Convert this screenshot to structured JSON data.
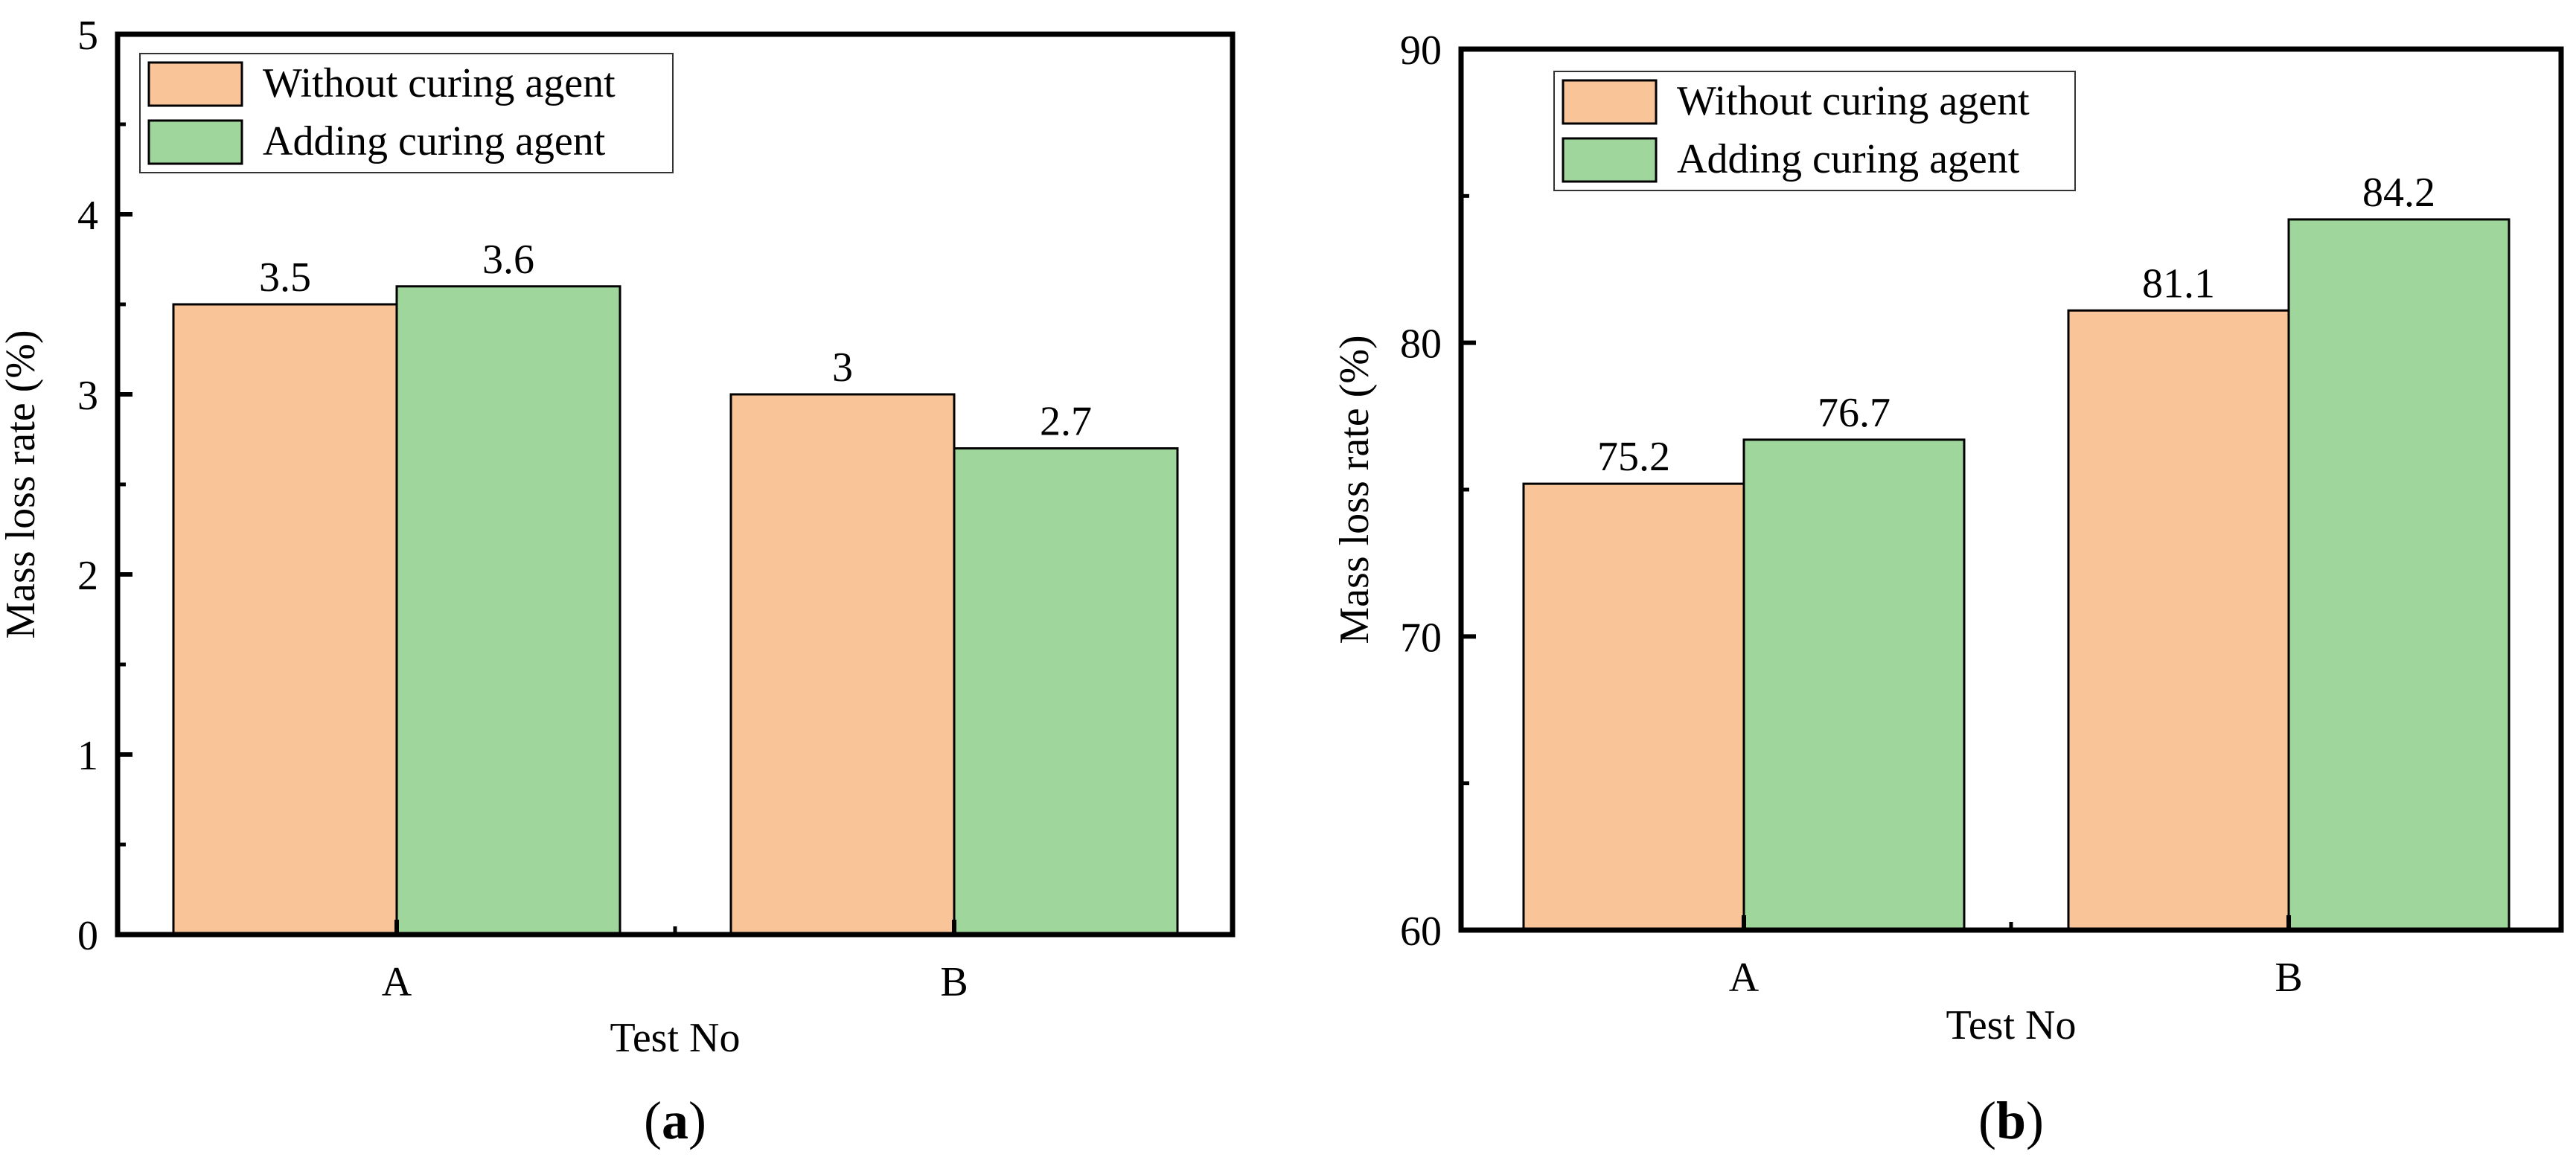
{
  "colors": {
    "without": "#F9C598",
    "adding": "#9FD69C",
    "stroke": "#000000"
  },
  "chart_data": [
    {
      "type": "bar",
      "panel": "a",
      "panel_label": "a",
      "title": "",
      "xlabel": "Test No",
      "ylabel": "Mass loss rate (%)",
      "categories": [
        "A",
        "B"
      ],
      "ylim": [
        0,
        5
      ],
      "yticks": [
        0,
        1,
        2,
        3,
        4,
        5
      ],
      "grid": false,
      "legend_position": "top-left",
      "series": [
        {
          "name": "Without curing agent",
          "key": "without",
          "values": [
            3.5,
            3
          ],
          "labels": [
            "3.5",
            "3"
          ]
        },
        {
          "name": "Adding curing agent",
          "key": "adding",
          "values": [
            3.6,
            2.7
          ],
          "labels": [
            "3.6",
            "2.7"
          ]
        }
      ]
    },
    {
      "type": "bar",
      "panel": "b",
      "panel_label": "b",
      "title": "",
      "xlabel": "Test No",
      "ylabel": "Mass loss rate (%)",
      "categories": [
        "A",
        "B"
      ],
      "ylim": [
        60,
        90
      ],
      "yticks": [
        60,
        70,
        80,
        90
      ],
      "grid": false,
      "legend_position": "top-left",
      "series": [
        {
          "name": "Without curing agent",
          "key": "without",
          "values": [
            75.2,
            81.1
          ],
          "labels": [
            "75.2",
            "81.1"
          ]
        },
        {
          "name": "Adding curing agent",
          "key": "adding",
          "values": [
            76.7,
            84.2
          ],
          "labels": [
            "76.7",
            "84.2"
          ]
        }
      ]
    }
  ]
}
